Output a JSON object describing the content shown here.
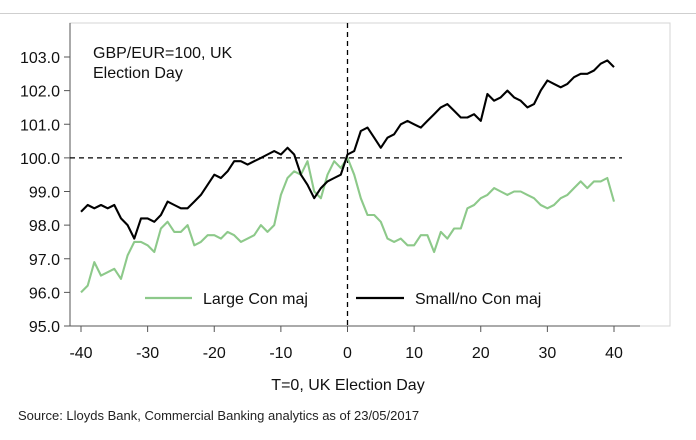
{
  "chart_data": {
    "type": "line",
    "title": "GBP/EUR=100, UK",
    "subtitle": "Election Day",
    "xlabel": "T=0, UK Election Day",
    "ylabel": "",
    "xlim": [
      -40,
      40
    ],
    "ylim": [
      95.0,
      103.0
    ],
    "x_ticks": [
      -40,
      -30,
      -20,
      -10,
      0,
      10,
      20,
      30,
      40
    ],
    "x_tick_labels": [
      "-40",
      "-30",
      "-20",
      "-10",
      "0",
      "10",
      "20",
      "30",
      "40"
    ],
    "y_ticks": [
      95.0,
      96.0,
      97.0,
      98.0,
      99.0,
      100.0,
      101.0,
      102.0,
      103.0
    ],
    "y_tick_labels": [
      "95.0",
      "96.0",
      "97.0",
      "98.0",
      "99.0",
      "100.0",
      "101.0",
      "102.0",
      "103.0"
    ],
    "reference_lines": {
      "horizontal": 100.0,
      "vertical": 0
    },
    "legend": {
      "placement": "bottom",
      "entries": [
        "Large Con maj",
        "Small/no Con maj"
      ]
    },
    "series": [
      {
        "name": "Large Con maj",
        "color": "#8dc98a",
        "x": [
          -40,
          -39,
          -38,
          -37,
          -36,
          -35,
          -34,
          -33,
          -32,
          -31,
          -30,
          -29,
          -28,
          -27,
          -26,
          -25,
          -24,
          -23,
          -22,
          -21,
          -20,
          -19,
          -18,
          -17,
          -16,
          -15,
          -14,
          -13,
          -12,
          -11,
          -10,
          -9,
          -8,
          -7,
          -6,
          -5,
          -4,
          -3,
          -2,
          -1,
          0,
          1,
          2,
          3,
          4,
          5,
          6,
          7,
          8,
          9,
          10,
          11,
          12,
          13,
          14,
          15,
          16,
          17,
          18,
          19,
          20,
          21,
          22,
          23,
          24,
          25,
          26,
          27,
          28,
          29,
          30,
          31,
          32,
          33,
          34,
          35,
          36,
          37,
          38,
          39,
          40
        ],
        "values": [
          96.0,
          96.2,
          96.9,
          96.5,
          96.6,
          96.7,
          96.4,
          97.1,
          97.5,
          97.5,
          97.4,
          97.2,
          97.9,
          98.1,
          97.8,
          97.8,
          98.0,
          97.4,
          97.5,
          97.7,
          97.7,
          97.6,
          97.8,
          97.7,
          97.5,
          97.6,
          97.7,
          98.0,
          97.8,
          98.0,
          98.9,
          99.4,
          99.6,
          99.5,
          99.9,
          99.0,
          98.8,
          99.5,
          99.9,
          99.7,
          100.0,
          99.5,
          98.8,
          98.3,
          98.3,
          98.1,
          97.6,
          97.5,
          97.6,
          97.4,
          97.4,
          97.7,
          97.7,
          97.2,
          97.8,
          97.6,
          97.9,
          97.9,
          98.5,
          98.6,
          98.8,
          98.9,
          99.1,
          99.0,
          98.9,
          99.0,
          99.0,
          98.9,
          98.8,
          98.6,
          98.5,
          98.6,
          98.8,
          98.9,
          99.1,
          99.3,
          99.1,
          99.3,
          99.3,
          99.4,
          98.7
        ]
      },
      {
        "name": "Small/no Con maj",
        "color": "#000000",
        "x": [
          -40,
          -39,
          -38,
          -37,
          -36,
          -35,
          -34,
          -33,
          -32,
          -31,
          -30,
          -29,
          -28,
          -27,
          -26,
          -25,
          -24,
          -23,
          -22,
          -21,
          -20,
          -19,
          -18,
          -17,
          -16,
          -15,
          -14,
          -13,
          -12,
          -11,
          -10,
          -9,
          -8,
          -7,
          -6,
          -5,
          -4,
          -3,
          -2,
          -1,
          0,
          1,
          2,
          3,
          4,
          5,
          6,
          7,
          8,
          9,
          10,
          11,
          12,
          13,
          14,
          15,
          16,
          17,
          18,
          19,
          20,
          21,
          22,
          23,
          24,
          25,
          26,
          27,
          28,
          29,
          30,
          31,
          32,
          33,
          34,
          35,
          36,
          37,
          38,
          39,
          40
        ],
        "values": [
          98.4,
          98.6,
          98.5,
          98.6,
          98.5,
          98.6,
          98.2,
          98.0,
          97.6,
          98.2,
          98.2,
          98.1,
          98.3,
          98.7,
          98.6,
          98.5,
          98.5,
          98.7,
          98.9,
          99.2,
          99.5,
          99.4,
          99.6,
          99.9,
          99.9,
          99.8,
          99.9,
          100.0,
          100.1,
          100.2,
          100.1,
          100.3,
          100.1,
          99.5,
          99.2,
          98.8,
          99.1,
          99.3,
          99.4,
          99.5,
          100.1,
          100.2,
          100.8,
          100.9,
          100.6,
          100.3,
          100.6,
          100.7,
          101.0,
          101.1,
          101.0,
          100.9,
          101.1,
          101.3,
          101.5,
          101.6,
          101.4,
          101.2,
          101.2,
          101.3,
          101.1,
          101.9,
          101.7,
          101.8,
          102.0,
          101.8,
          101.7,
          101.5,
          101.6,
          102.0,
          102.3,
          102.2,
          102.1,
          102.2,
          102.4,
          102.5,
          102.5,
          102.6,
          102.8,
          102.9,
          102.7
        ]
      }
    ]
  },
  "source_text": "Source: Lloyds Bank, Commercial Banking analytics as of 23/05/2017"
}
